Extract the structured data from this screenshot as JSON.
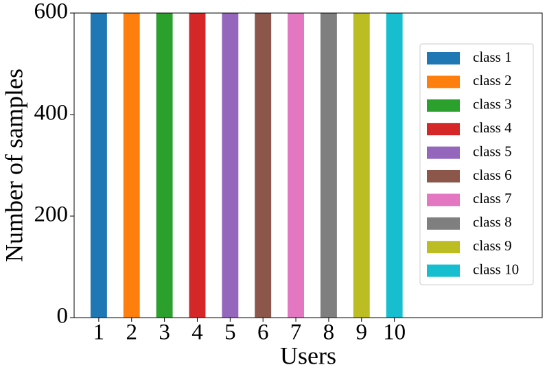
{
  "chart_data": {
    "type": "stacked-bar",
    "x_label": "Users",
    "y_label": "Number of samples",
    "x": [
      1,
      2,
      3,
      4,
      5,
      6,
      7,
      8,
      9,
      10
    ],
    "xlim": [
      0.25,
      14.5
    ],
    "xticks": [
      1,
      2,
      3,
      4,
      5,
      6,
      7,
      8,
      9,
      10
    ],
    "ylim": [
      0,
      600
    ],
    "yticks": [
      0,
      200,
      400,
      600
    ],
    "bar_width": 0.5,
    "legend": "right",
    "series": [
      {
        "name": "class 1",
        "color": "#1f77b4",
        "values": [
          600,
          0,
          0,
          0,
          0,
          0,
          0,
          0,
          0,
          0
        ]
      },
      {
        "name": "class 2",
        "color": "#ff7f0e",
        "values": [
          0,
          600,
          0,
          0,
          0,
          0,
          0,
          0,
          0,
          0
        ]
      },
      {
        "name": "class 3",
        "color": "#2ca02c",
        "values": [
          0,
          0,
          600,
          0,
          0,
          0,
          0,
          0,
          0,
          0
        ]
      },
      {
        "name": "class 4",
        "color": "#d62728",
        "values": [
          0,
          0,
          0,
          600,
          0,
          0,
          0,
          0,
          0,
          0
        ]
      },
      {
        "name": "class 5",
        "color": "#9467bd",
        "values": [
          0,
          0,
          0,
          0,
          600,
          0,
          0,
          0,
          0,
          0
        ]
      },
      {
        "name": "class 6",
        "color": "#8c564b",
        "values": [
          0,
          0,
          0,
          0,
          0,
          600,
          0,
          0,
          0,
          0
        ]
      },
      {
        "name": "class 7",
        "color": "#e377c2",
        "values": [
          0,
          0,
          0,
          0,
          0,
          0,
          600,
          0,
          0,
          0
        ]
      },
      {
        "name": "class 8",
        "color": "#7f7f7f",
        "values": [
          0,
          0,
          0,
          0,
          0,
          0,
          0,
          600,
          0,
          0
        ]
      },
      {
        "name": "class 9",
        "color": "#bcbd22",
        "values": [
          0,
          0,
          0,
          0,
          0,
          0,
          0,
          0,
          600,
          0
        ]
      },
      {
        "name": "class 10",
        "color": "#17becf",
        "values": [
          0,
          0,
          0,
          0,
          0,
          0,
          0,
          0,
          0,
          600
        ]
      }
    ]
  }
}
